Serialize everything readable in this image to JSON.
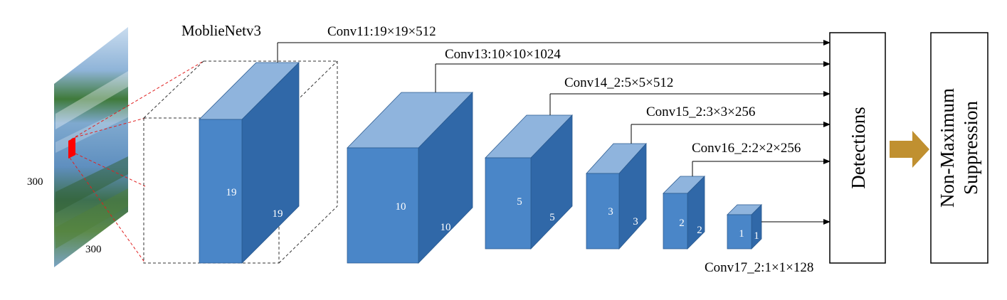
{
  "input": {
    "height_label": "300",
    "width_label": "300"
  },
  "backbone_label": "MoblieNetv3",
  "feature_maps": [
    {
      "label": "Conv11:19×19×512",
      "h_dim": "19",
      "d_dim": "19"
    },
    {
      "label": "Conv13:10×10×1024",
      "h_dim": "10",
      "d_dim": "10"
    },
    {
      "label": "Conv14_2:5×5×512",
      "h_dim": "5",
      "d_dim": "5"
    },
    {
      "label": "Conv15_2:3×3×256",
      "h_dim": "3",
      "d_dim": "3"
    },
    {
      "label": "Conv16_2:2×2×256",
      "h_dim": "2",
      "d_dim": "2"
    },
    {
      "label": "Conv17_2:1×1×128",
      "h_dim": "1",
      "d_dim": "1"
    }
  ],
  "detections_label": "Detections",
  "nms_label": [
    "Non-Maximum",
    "Suppression"
  ],
  "colors": {
    "cube_front": "#4a86c8",
    "cube_top": "#8fb4dd",
    "cube_side": "#3068a8",
    "highlight": "#ff0000",
    "arrow": "#c09030"
  }
}
